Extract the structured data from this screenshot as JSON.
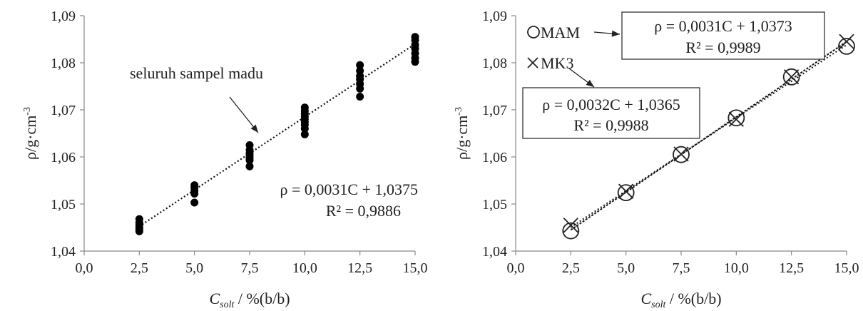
{
  "chart_data": [
    {
      "type": "scatter",
      "xlabel_main": "C",
      "xlabel_sub": "solt",
      "xlabel_rest": " / %(b/b)",
      "ylabel": "ρ/g·cm",
      "ylabel_sup": "-3",
      "xlim": [
        0,
        15
      ],
      "ylim": [
        1.04,
        1.09
      ],
      "xticks": [
        "0,0",
        "2,5",
        "5,0",
        "7,5",
        "10,0",
        "12,5",
        "15,0"
      ],
      "yticks": [
        "1,04",
        "1,05",
        "1,06",
        "1,07",
        "1,08",
        "1,09"
      ],
      "series": [
        {
          "x": [
            2.5,
            2.5,
            2.5,
            2.5,
            2.5,
            2.5,
            5,
            5,
            5,
            5,
            5,
            7.5,
            7.5,
            7.5,
            7.5,
            7.5,
            7.5,
            7.5,
            10,
            10,
            10,
            10,
            10,
            10,
            10,
            10,
            10,
            12.5,
            12.5,
            12.5,
            12.5,
            12.5,
            12.5,
            12.5,
            15,
            15,
            15,
            15,
            15,
            15,
            15
          ],
          "y": [
            1.0468,
            1.046,
            1.0455,
            1.045,
            1.0446,
            1.0442,
            1.054,
            1.0535,
            1.0528,
            1.0522,
            1.0503,
            1.0625,
            1.0615,
            1.0608,
            1.0603,
            1.0598,
            1.0593,
            1.058,
            1.0705,
            1.0698,
            1.0692,
            1.0686,
            1.068,
            1.0674,
            1.0668,
            1.066,
            1.0648,
            1.0795,
            1.0783,
            1.0772,
            1.0765,
            1.0755,
            1.0745,
            1.0728,
            1.0855,
            1.0848,
            1.0838,
            1.083,
            1.082,
            1.081,
            1.0802
          ]
        }
      ],
      "trendline": {
        "slope": 0.0031,
        "intercept": 1.0375,
        "x_range": [
          2.5,
          15
        ]
      },
      "annotations": {
        "arrow_label": "seluruh sampel madu",
        "equation": "ρ = 0,0031C + 1,0375",
        "r2": "R² = 0,9886"
      }
    },
    {
      "type": "scatter",
      "xlabel_main": "C",
      "xlabel_sub": "solt",
      "xlabel_rest": " / %(b/b)",
      "ylabel": "ρ/g·cm",
      "ylabel_sup": "-3",
      "xlim": [
        0,
        15
      ],
      "ylim": [
        1.04,
        1.09
      ],
      "xticks": [
        "0,0",
        "2,5",
        "5,0",
        "7,5",
        "10,0",
        "12,5",
        "15,0"
      ],
      "yticks": [
        "1,04",
        "1,05",
        "1,06",
        "1,07",
        "1,08",
        "1,09"
      ],
      "series": [
        {
          "name": "MAM",
          "marker": "circle",
          "x": [
            2.5,
            5,
            7.5,
            10,
            12.5,
            15
          ],
          "y": [
            1.0443,
            1.0524,
            1.0605,
            1.0683,
            1.077,
            1.0835
          ],
          "trendline": {
            "slope": 0.0031,
            "intercept": 1.0373
          },
          "equation": "ρ = 0,0031C + 1,0373",
          "r2": "R² = 0,9989"
        },
        {
          "name": "MK3",
          "marker": "cross",
          "x": [
            2.5,
            5,
            7.5,
            10,
            12.5,
            15
          ],
          "y": [
            1.0455,
            1.0527,
            1.0606,
            1.068,
            1.077,
            1.0845
          ],
          "trendline": {
            "slope": 0.0032,
            "intercept": 1.0365
          },
          "equation": "ρ = 0,0032C + 1,0365",
          "r2": "R² = 0,9988"
        }
      ]
    }
  ]
}
